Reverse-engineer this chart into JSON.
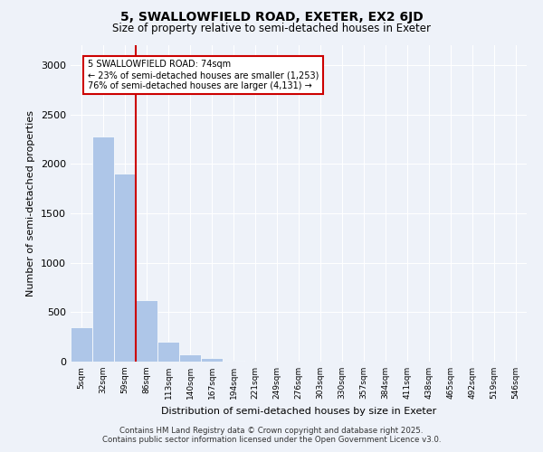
{
  "title": "5, SWALLOWFIELD ROAD, EXETER, EX2 6JD",
  "subtitle": "Size of property relative to semi-detached houses in Exeter",
  "xlabel": "Distribution of semi-detached houses by size in Exeter",
  "ylabel": "Number of semi-detached properties",
  "bar_values": [
    350,
    2280,
    1900,
    620,
    200,
    75,
    40,
    5,
    2,
    1,
    1,
    0,
    0,
    0,
    0,
    0,
    0,
    0,
    0,
    0,
    0
  ],
  "bin_labels": [
    "5sqm",
    "32sqm",
    "59sqm",
    "86sqm",
    "113sqm",
    "140sqm",
    "167sqm",
    "194sqm",
    "221sqm",
    "249sqm",
    "276sqm",
    "303sqm",
    "330sqm",
    "357sqm",
    "384sqm",
    "411sqm",
    "438sqm",
    "465sqm",
    "492sqm",
    "519sqm",
    "546sqm"
  ],
  "bar_color": "#aec6e8",
  "bar_edge_color": "#ffffff",
  "vline_x": 2.5,
  "annotation_title": "5 SWALLOWFIELD ROAD: 74sqm",
  "annotation_line1": "← 23% of semi-detached houses are smaller (1,253)",
  "annotation_line2": "76% of semi-detached houses are larger (4,131) →",
  "annotation_box_color": "#ffffff",
  "annotation_box_edge": "#cc0000",
  "vline_color": "#cc0000",
  "ylim": [
    0,
    3200
  ],
  "yticks": [
    0,
    500,
    1000,
    1500,
    2000,
    2500,
    3000
  ],
  "background_color": "#eef2f9",
  "plot_background": "#eef2f9",
  "grid_color": "#ffffff",
  "footer_line1": "Contains HM Land Registry data © Crown copyright and database right 2025.",
  "footer_line2": "Contains public sector information licensed under the Open Government Licence v3.0."
}
